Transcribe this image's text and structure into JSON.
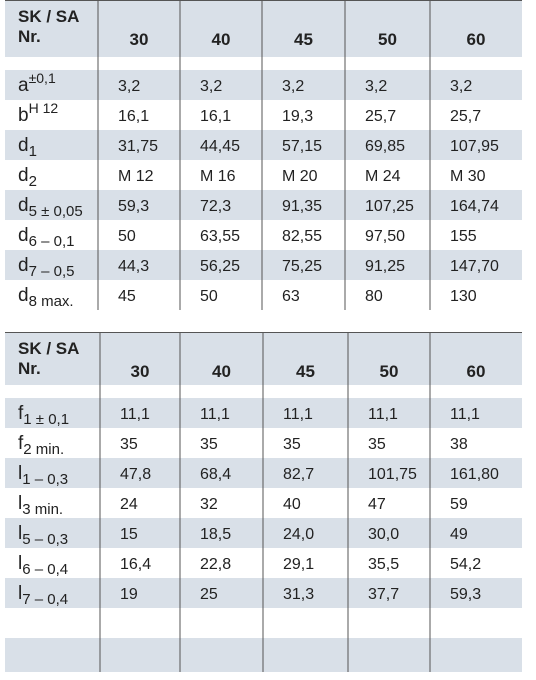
{
  "tables": [
    {
      "header": {
        "title_line1": "SK / SA",
        "title_line2": "Nr.",
        "columns": [
          "30",
          "40",
          "45",
          "50",
          "60"
        ]
      },
      "rows": [
        {
          "label": {
            "main": "a",
            "sup": "±0,1"
          },
          "values": [
            "3,2",
            "3,2",
            "3,2",
            "3,2",
            "3,2"
          ]
        },
        {
          "label": {
            "main": "b",
            "sup": "H 12"
          },
          "values": [
            "16,1",
            "16,1",
            "19,3",
            "25,7",
            "25,7"
          ]
        },
        {
          "label": {
            "main": "d",
            "sub": "1"
          },
          "values": [
            "31,75",
            "44,45",
            "57,15",
            "69,85",
            "107,95"
          ]
        },
        {
          "label": {
            "main": "d",
            "sub": "2"
          },
          "values": [
            "M 12",
            "M 16",
            "M 20",
            "M 24",
            "M 30"
          ]
        },
        {
          "label": {
            "main": "d",
            "sub": "5 ± 0,05"
          },
          "values": [
            "59,3",
            "72,3",
            "91,35",
            "107,25",
            "164,74"
          ]
        },
        {
          "label": {
            "main": "d",
            "sub": "6 – 0,1"
          },
          "values": [
            "50",
            "63,55",
            "82,55",
            "97,50",
            "155"
          ]
        },
        {
          "label": {
            "main": "d",
            "sub": "7 – 0,5"
          },
          "values": [
            "44,3",
            "56,25",
            "75,25",
            "91,25",
            "147,70"
          ]
        },
        {
          "label": {
            "main": "d",
            "sub": "8 max."
          },
          "values": [
            "45",
            "50",
            "63",
            "80",
            "130"
          ]
        }
      ]
    },
    {
      "header": {
        "title_line1": "SK / SA",
        "title_line2": "Nr.",
        "columns": [
          "30",
          "40",
          "45",
          "50",
          "60"
        ]
      },
      "rows": [
        {
          "label": {
            "main": "f",
            "sub": "1 ± 0,1"
          },
          "values": [
            "11,1",
            "11,1",
            "11,1",
            "11,1",
            "11,1"
          ]
        },
        {
          "label": {
            "main": "f",
            "sub": "2 min."
          },
          "values": [
            "35",
            "35",
            "35",
            "35",
            "38"
          ]
        },
        {
          "label": {
            "main": "l",
            "sub": "1 – 0,3"
          },
          "values": [
            "47,8",
            "68,4",
            "82,7",
            "101,75",
            "161,80"
          ]
        },
        {
          "label": {
            "main": "l",
            "sub": "3 min."
          },
          "values": [
            "24",
            "32",
            "40",
            "47",
            "59"
          ]
        },
        {
          "label": {
            "main": "l",
            "sub": "5 – 0,3"
          },
          "values": [
            "15",
            "18,5",
            "24,0",
            "30,0",
            "49"
          ]
        },
        {
          "label": {
            "main": "l",
            "sub": "6 – 0,4"
          },
          "values": [
            "16,4",
            "22,8",
            "29,1",
            "35,5",
            "54,2"
          ]
        },
        {
          "label": {
            "main": "l",
            "sub": "7 – 0,4"
          },
          "values": [
            "19",
            "25",
            "31,3",
            "37,7",
            "59,3"
          ]
        }
      ]
    }
  ]
}
